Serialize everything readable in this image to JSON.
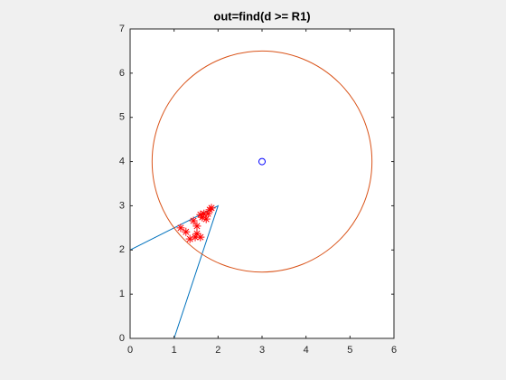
{
  "chart_data": {
    "type": "line",
    "title": "out=find(d >= R1)",
    "xlim": [
      0,
      6
    ],
    "ylim": [
      0,
      7
    ],
    "xticks": [
      0,
      1,
      2,
      3,
      4,
      5,
      6
    ],
    "yticks": [
      0,
      1,
      2,
      3,
      4,
      5,
      6,
      7
    ],
    "series": [
      {
        "type": "line",
        "color": "#0072BD",
        "x": [
          0,
          1,
          2,
          0
        ],
        "y": [
          0,
          0,
          3,
          2
        ]
      },
      {
        "type": "circle",
        "color": "#D95319",
        "center": [
          3,
          4
        ],
        "radius": 2.5
      },
      {
        "type": "marker",
        "marker": "o",
        "color": "#0000FF",
        "x": [
          3
        ],
        "y": [
          4
        ]
      },
      {
        "type": "marker",
        "marker": "*",
        "color": "#FF0000",
        "x": [
          1.85,
          1.81,
          1.77,
          1.68,
          1.6,
          1.64,
          1.73,
          1.44,
          1.52,
          1.15,
          1.27,
          1.52,
          1.36,
          1.48,
          1.6
        ],
        "y": [
          2.95,
          2.91,
          2.82,
          2.82,
          2.8,
          2.74,
          2.7,
          2.66,
          2.54,
          2.5,
          2.41,
          2.37,
          2.25,
          2.29,
          2.29
        ]
      }
    ]
  }
}
